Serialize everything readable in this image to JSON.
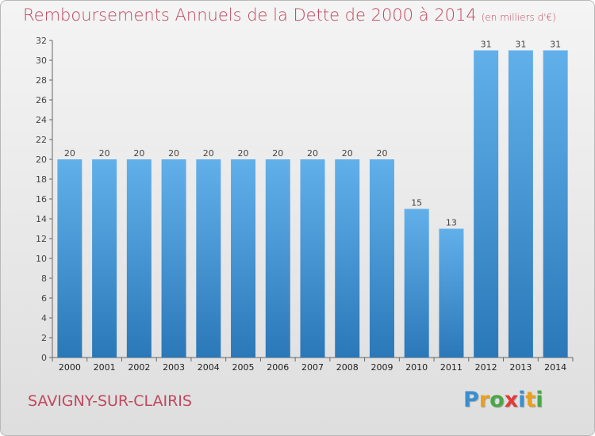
{
  "title": {
    "main": "Remboursements Annuels de la Dette de 2000 à 2014",
    "unit": "(en milliers d'€)"
  },
  "commune": "SAVIGNY-SUR-CLAIRIS",
  "logo": {
    "letters": [
      "P",
      "r",
      "o",
      "x",
      "i",
      "t",
      "i"
    ],
    "colors": [
      "#3a8fd0",
      "#e8a020",
      "#48a848",
      "#e23a3a",
      "#3a8fd0",
      "#e8a020",
      "#48a848"
    ]
  },
  "colors": {
    "bar_top": "#62b0ea",
    "bar_bottom": "#2a78b8",
    "title": "#c0485f"
  },
  "chart_data": {
    "type": "bar",
    "categories": [
      "2000",
      "2001",
      "2002",
      "2003",
      "2004",
      "2005",
      "2006",
      "2007",
      "2008",
      "2009",
      "2010",
      "2011",
      "2012",
      "2013",
      "2014"
    ],
    "values": [
      20,
      20,
      20,
      20,
      20,
      20,
      20,
      20,
      20,
      20,
      15,
      13,
      31,
      31,
      31
    ],
    "data_labels": [
      "20",
      "20",
      "20",
      "20",
      "20",
      "20",
      "20",
      "20",
      "20",
      "20",
      "15",
      "13",
      "31",
      "31",
      "31"
    ],
    "ylim": [
      0,
      32
    ],
    "yticks": [
      0,
      2,
      4,
      6,
      8,
      10,
      12,
      14,
      16,
      18,
      20,
      22,
      24,
      26,
      28,
      30,
      32
    ],
    "grid": false
  }
}
